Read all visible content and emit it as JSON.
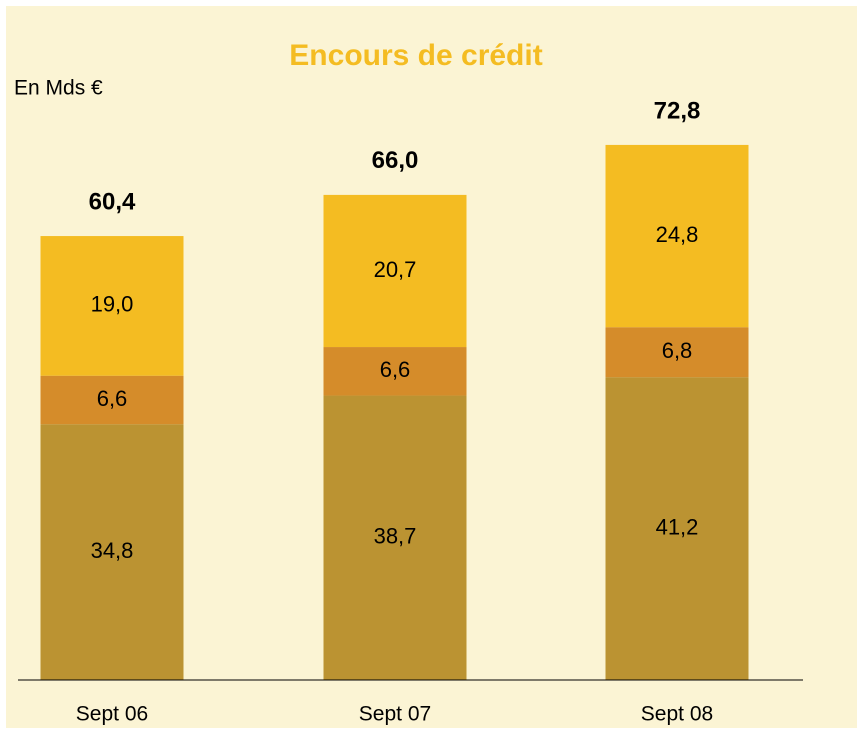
{
  "chart_data": {
    "type": "stacked-bar",
    "title": "Encours de crédit",
    "unit_label": "En Mds €",
    "categories": [
      "Sept 06",
      "Sept 07",
      "Sept 08"
    ],
    "series": [
      {
        "color": "#bb9332",
        "values": [
          34.8,
          38.7,
          41.2
        ],
        "value_labels": [
          "34,8",
          "38,7",
          "41,2"
        ]
      },
      {
        "color": "#d58c2a",
        "values": [
          6.6,
          6.6,
          6.8
        ],
        "value_labels": [
          "6,6",
          "6,6",
          "6,8"
        ]
      },
      {
        "color": "#f4bc22",
        "values": [
          19.0,
          20.7,
          24.8
        ],
        "value_labels": [
          "19,0",
          "20,7",
          "24,8"
        ]
      }
    ],
    "totals": [
      60.4,
      66.0,
      72.8
    ],
    "total_labels": [
      "60,4",
      "66,0",
      "72,8"
    ]
  }
}
